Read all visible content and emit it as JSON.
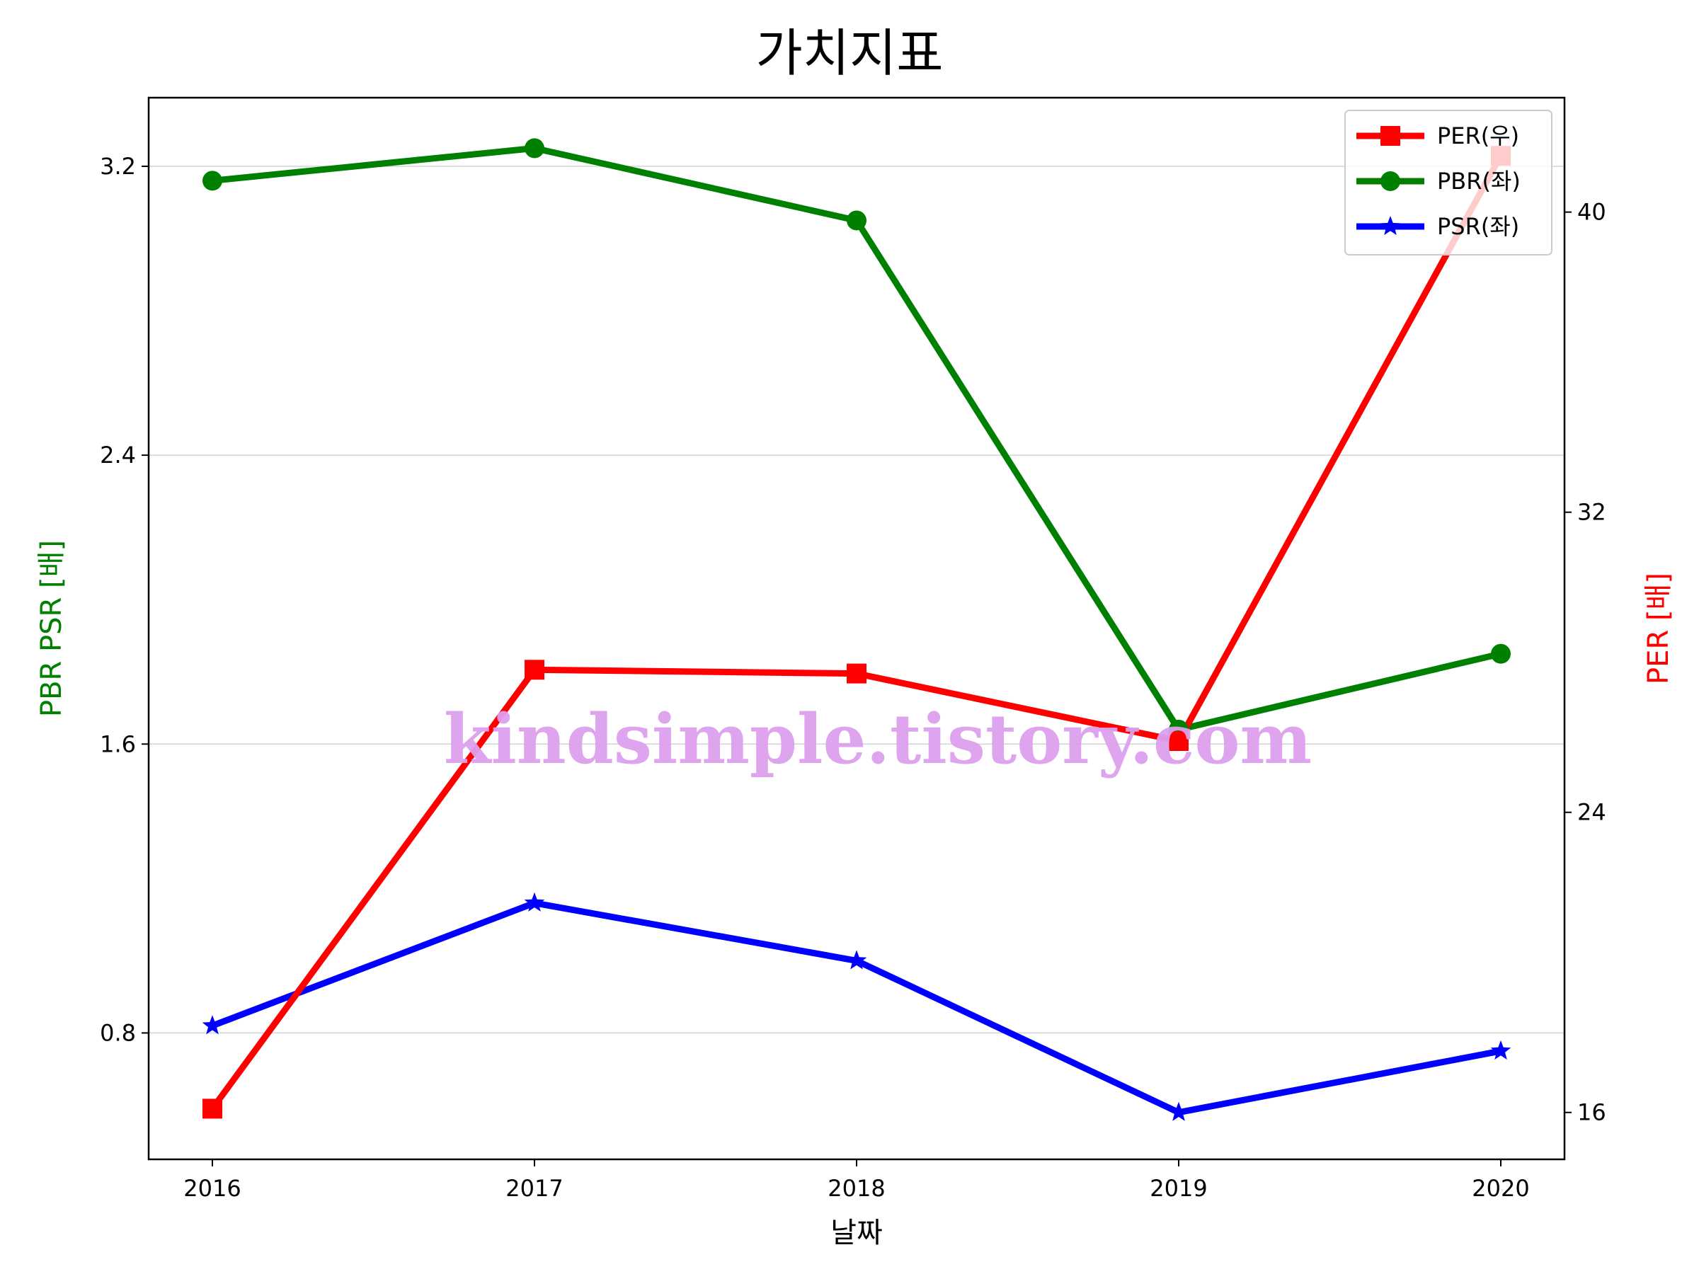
{
  "chart_data": {
    "type": "line",
    "title": "가치지표",
    "xlabel": "날짜",
    "ylabel_left": "PBR PSR [배]",
    "ylabel_right": "PER [배]",
    "categories": [
      "2016",
      "2017",
      "2018",
      "2019",
      "2020"
    ],
    "ylim_left": [
      0.45,
      3.39
    ],
    "ylim_right": [
      14.75,
      43.05
    ],
    "yticks_left": [
      "0.8",
      "1.6",
      "2.4",
      "3.2"
    ],
    "yticks_right": [
      "16",
      "24",
      "32",
      "40"
    ],
    "grid": true,
    "legend_position": "top-right",
    "series": [
      {
        "name": "PER(우)",
        "axis": "right",
        "color": "#ff0000",
        "marker": "square",
        "values": [
          16.1,
          27.8,
          27.7,
          25.9,
          41.5
        ]
      },
      {
        "name": "PBR(좌)",
        "axis": "left",
        "color": "#008000",
        "marker": "circle",
        "values": [
          3.16,
          3.25,
          3.05,
          1.64,
          1.85
        ]
      },
      {
        "name": "PSR(좌)",
        "axis": "left",
        "color": "#0000ff",
        "marker": "star",
        "values": [
          0.82,
          1.16,
          1.0,
          0.58,
          0.75
        ]
      }
    ]
  },
  "watermark": "kindsimple.tistory.com"
}
